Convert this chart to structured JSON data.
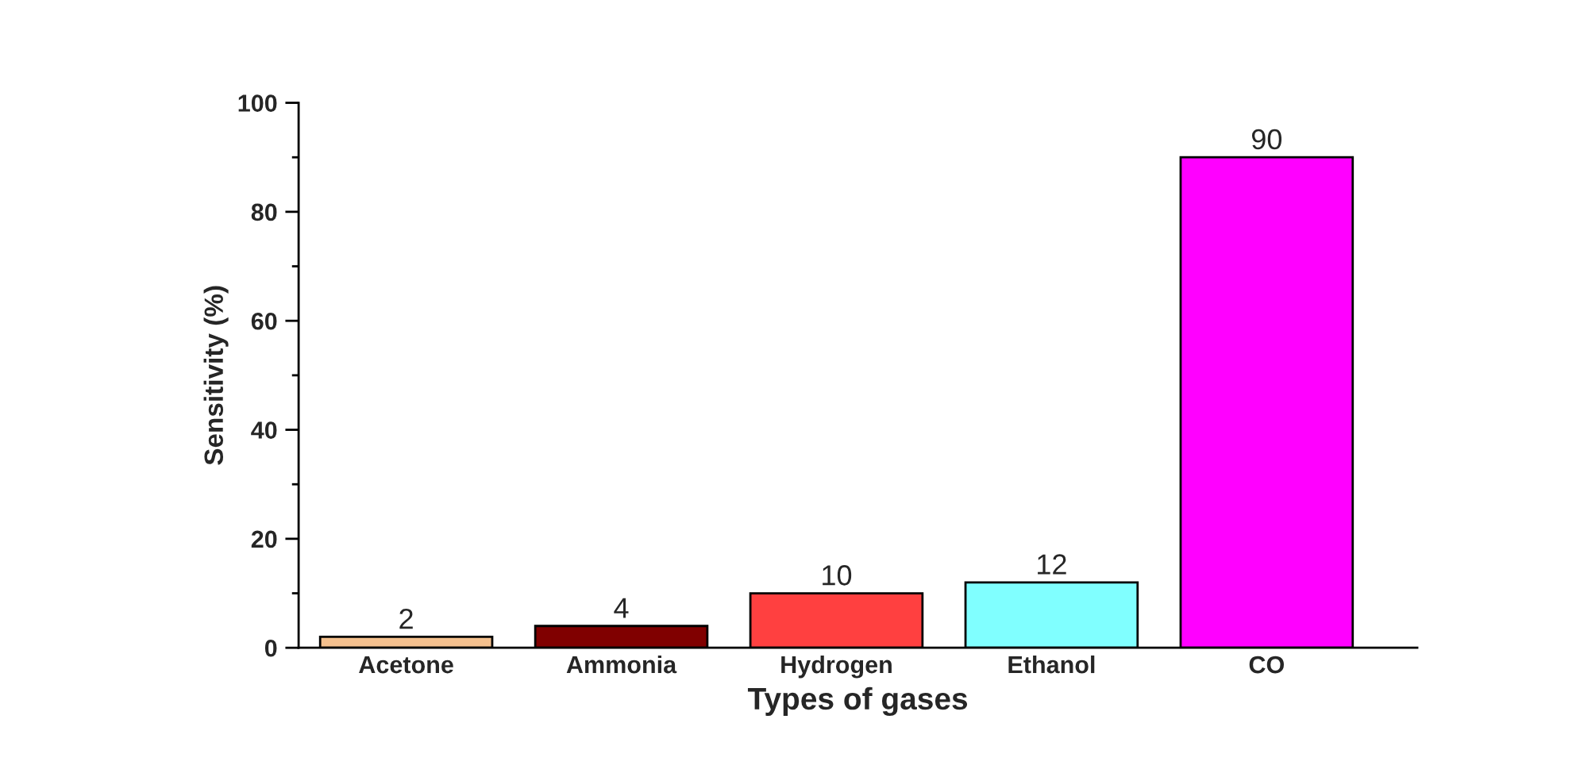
{
  "chart_data": {
    "type": "bar",
    "xlabel": "Types of gases",
    "ylabel": "Sensitivity (%)",
    "categories": [
      "Acetone",
      "Ammonia",
      "Hydrogen",
      "Ethanol",
      "CO"
    ],
    "values": [
      2,
      4,
      10,
      12,
      90
    ],
    "colors": [
      "#f4c08e",
      "#800000",
      "#ff4040",
      "#80ffff",
      "#ff00ff"
    ],
    "ylim": [
      0,
      100
    ],
    "yticks": [
      0,
      20,
      40,
      60,
      80,
      100
    ],
    "data_labels": true,
    "grid": false,
    "legend": false
  }
}
